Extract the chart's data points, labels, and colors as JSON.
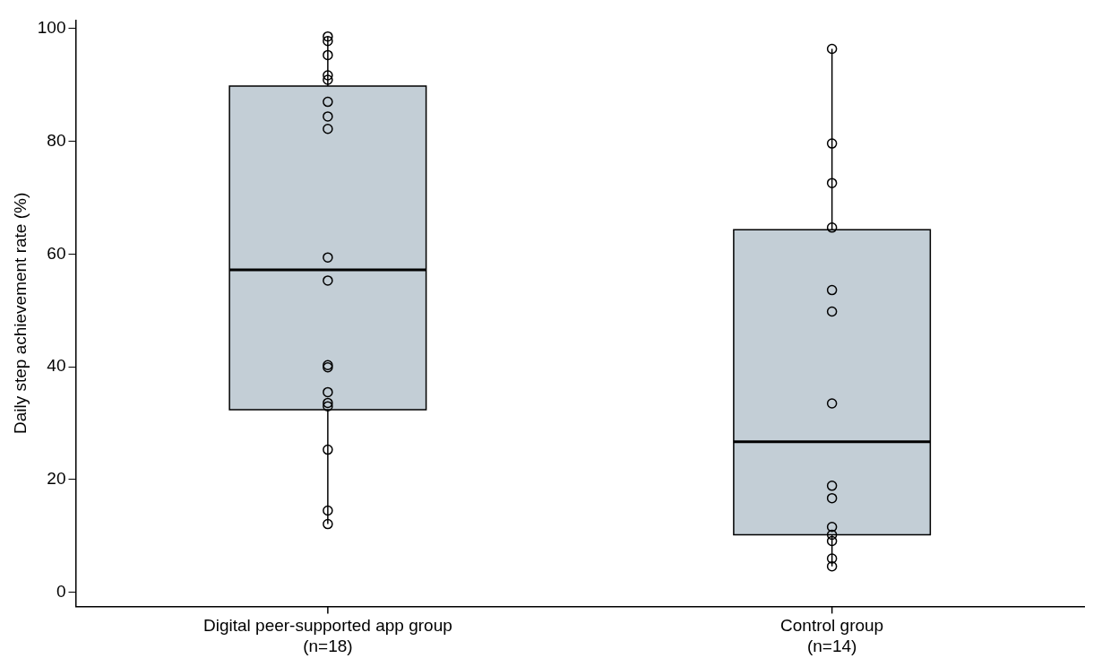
{
  "chart_data": {
    "type": "box",
    "ylabel": "Daily step achievement rate (%)",
    "categories": [
      "Digital peer-supported app group\n(n=18)",
      "Control group\n(n=14)"
    ],
    "ylim": [
      -2.5,
      101.5
    ],
    "yticks": [
      0,
      20,
      40,
      60,
      80,
      100
    ],
    "grid": false,
    "legend": false,
    "series": [
      {
        "type": "box",
        "color": "#c3ced6",
        "boxes": [
          {
            "low": 12.1,
            "q1": 32.4,
            "median": 57.2,
            "q3": 89.8,
            "high": 98.6
          },
          {
            "low": 4.6,
            "q1": 10.2,
            "median": 26.7,
            "q3": 64.3,
            "high": 96.4
          }
        ]
      },
      {
        "type": "scatter",
        "color": "#000000",
        "marker": "circle",
        "x": [
          "Digital peer-supported app group\n(n=18)",
          "Digital peer-supported app group\n(n=18)",
          "Digital peer-supported app group\n(n=18)",
          "Digital peer-supported app group\n(n=18)",
          "Digital peer-supported app group\n(n=18)",
          "Digital peer-supported app group\n(n=18)",
          "Digital peer-supported app group\n(n=18)",
          "Digital peer-supported app group\n(n=18)",
          "Digital peer-supported app group\n(n=18)",
          "Digital peer-supported app group\n(n=18)",
          "Digital peer-supported app group\n(n=18)",
          "Digital peer-supported app group\n(n=18)",
          "Digital peer-supported app group\n(n=18)",
          "Digital peer-supported app group\n(n=18)",
          "Digital peer-supported app group\n(n=18)",
          "Digital peer-supported app group\n(n=18)",
          "Digital peer-supported app group\n(n=18)",
          "Digital peer-supported app group\n(n=18)",
          "Control group\n(n=14)",
          "Control group\n(n=14)",
          "Control group\n(n=14)",
          "Control group\n(n=14)",
          "Control group\n(n=14)",
          "Control group\n(n=14)",
          "Control group\n(n=14)",
          "Control group\n(n=14)",
          "Control group\n(n=14)",
          "Control group\n(n=14)",
          "Control group\n(n=14)",
          "Control group\n(n=14)",
          "Control group\n(n=14)",
          "Control group\n(n=14)"
        ],
        "values": [
          98.6,
          97.8,
          95.3,
          91.7,
          90.9,
          87,
          84.4,
          82.2,
          59.4,
          55.3,
          40.3,
          39.9,
          35.5,
          33.6,
          33.0,
          25.3,
          14.5,
          12.1,
          96.4,
          79.6,
          72.6,
          64.7,
          53.6,
          49.8,
          33.5,
          18.9,
          16.7,
          11.6,
          10.2,
          9.1,
          6.0,
          4.6
        ]
      }
    ]
  }
}
